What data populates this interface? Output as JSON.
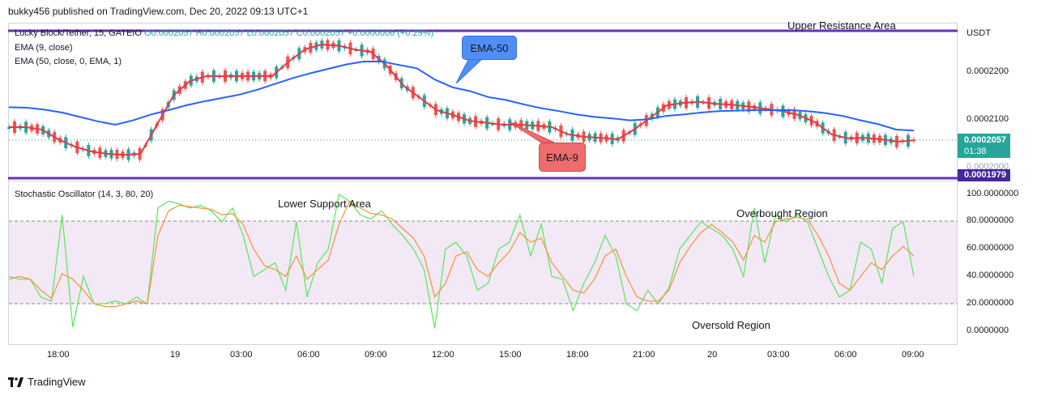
{
  "publisher": "bukky456 published on TradingView.com, Dec 20, 2022 09:13 UTC+1",
  "legend": {
    "symbol": "Lucky Block/Tether, 15, GATEIO",
    "ohlc": "O0.0002057 H0.0002057 L0.0002057 C0.0002057 +0.0000006 (+0.29%)",
    "ema9": "EMA (9, close)",
    "ema50": "EMA (50, close, 0, EMA, 1)",
    "stoch": "Stochastic Oscillator (14, 3, 80, 20)"
  },
  "annotations": {
    "upper_resistance": "Upper Resistance Area",
    "lower_support": "Lower Support Area",
    "overbought": "Overbought Region",
    "oversold": "Oversold Region",
    "ema50_callout": "EMA-50",
    "ema9_callout": "EMA-9"
  },
  "price_axis": {
    "currency": "USDT",
    "ticks": [
      "0.0002200",
      "0.0002100",
      "0.0002000"
    ],
    "last_price": "0.0002057",
    "countdown": "01:38",
    "support_price": "0.0001979"
  },
  "stoch_axis": {
    "ticks": [
      "100.0000000",
      "80.0000000",
      "60.0000000",
      "40.0000000",
      "20.0000000",
      "0.0000000"
    ]
  },
  "time_axis": {
    "ticks": [
      "18:00",
      "19",
      "03:00",
      "06:00",
      "09:00",
      "12:00",
      "15:00",
      "18:00",
      "21:00",
      "20",
      "03:00",
      "06:00",
      "09:00"
    ]
  },
  "colors": {
    "up": "#26a69a",
    "down": "#ef5350",
    "ema9": "#e53945",
    "ema50": "#2962ff",
    "level_line": "#6a2fb3",
    "stoch_k": "#55e85a",
    "stoch_d": "#f4923a",
    "band_fill": "#f3e8f5",
    "ema50_callout_bg": "#4f8ff5",
    "ema9_callout_bg": "#ef6c6c"
  },
  "footer": {
    "brand": "TradingView"
  },
  "chart_data": [
    {
      "type": "line",
      "title": "Lucky Block/Tether, 15, GATEIO",
      "ylim": [
        0.0001975,
        0.000229
      ],
      "series": [
        {
          "name": "EMA (9, close)",
          "values": [
            0.0002085,
            0.0002085,
            0.000208,
            0.000206,
            0.0002045,
            0.0002035,
            0.000203,
            0.0002028,
            0.000203,
            0.000209,
            0.000215,
            0.000218,
            0.000219,
            0.000219,
            0.000219,
            0.000219,
            0.000219,
            0.000222,
            0.0002245,
            0.0002255,
            0.0002253,
            0.0002245,
            0.000224,
            0.000221,
            0.000217,
            0.0002145,
            0.000212,
            0.000211,
            0.0002098,
            0.0002094,
            0.000209,
            0.000209,
            0.0002088,
            0.0002085,
            0.000207,
            0.0002065,
            0.0002063,
            0.000206,
            0.000208,
            0.0002105,
            0.000213,
            0.0002135,
            0.0002137,
            0.0002133,
            0.0002131,
            0.0002127,
            0.0002123,
            0.0002118,
            0.000211,
            0.0002095,
            0.000207,
            0.0002062,
            0.0002063,
            0.000206,
            0.0002055,
            0.0002058
          ]
        },
        {
          "name": "EMA (50, close, 0, EMA, 1)",
          "values": [
            0.0002126,
            0.0002125,
            0.0002121,
            0.0002115,
            0.0002106,
            0.0002097,
            0.000209,
            0.0002099,
            0.0002111,
            0.000212,
            0.000213,
            0.0002138,
            0.0002145,
            0.0002152,
            0.0002162,
            0.0002174,
            0.0002186,
            0.0002196,
            0.0002205,
            0.0002214,
            0.000222,
            0.000222,
            0.0002213,
            0.0002206,
            0.0002183,
            0.0002167,
            0.0002159,
            0.0002147,
            0.0002141,
            0.0002132,
            0.0002124,
            0.0002118,
            0.0002111,
            0.0002106,
            0.0002103,
            0.0002099,
            0.0002101,
            0.0002108,
            0.0002111,
            0.0002115,
            0.0002118,
            0.0002119,
            0.000212,
            0.000212,
            0.000212,
            0.0002118,
            0.0002114,
            0.0002108,
            0.0002099,
            0.0002091,
            0.000208,
            0.0002078
          ]
        }
      ],
      "levels": [
        0.000229,
        0.0001979
      ]
    },
    {
      "type": "line",
      "title": "Stochastic Oscillator (14, 3, 80, 20)",
      "ylim": [
        0,
        100
      ],
      "bands": [
        20,
        80
      ],
      "series": [
        {
          "name": "%K",
          "values": [
            40,
            38,
            38,
            25,
            22,
            85,
            3,
            40,
            20,
            20,
            22,
            20,
            25,
            20,
            90,
            95,
            93,
            90,
            92,
            88,
            80,
            90,
            70,
            40,
            45,
            50,
            30,
            80,
            25,
            50,
            60,
            100,
            95,
            85,
            82,
            88,
            78,
            70,
            60,
            45,
            2,
            60,
            65,
            55,
            30,
            35,
            60,
            65,
            85,
            55,
            78,
            40,
            38,
            15,
            35,
            50,
            70,
            55,
            20,
            15,
            30,
            20,
            32,
            60,
            70,
            80,
            75,
            70,
            60,
            40,
            90,
            50,
            85,
            80,
            85,
            80,
            60,
            40,
            25,
            30,
            65,
            60,
            35,
            75,
            80,
            40
          ]
        },
        {
          "name": "%D",
          "values": [
            38,
            40,
            38,
            30,
            24,
            42,
            38,
            30,
            20,
            18,
            18,
            20,
            22,
            20,
            70,
            88,
            92,
            91,
            90,
            89,
            85,
            86,
            78,
            60,
            48,
            45,
            40,
            55,
            38,
            45,
            52,
            78,
            95,
            90,
            86,
            85,
            82,
            75,
            68,
            55,
            25,
            35,
            55,
            58,
            45,
            40,
            50,
            58,
            72,
            65,
            68,
            50,
            40,
            30,
            28,
            38,
            55,
            60,
            40,
            25,
            22,
            22,
            30,
            50,
            62,
            72,
            78,
            72,
            65,
            52,
            70,
            65,
            80,
            82,
            83,
            82,
            70,
            55,
            35,
            30,
            40,
            50,
            45,
            55,
            62,
            55
          ]
        }
      ]
    }
  ]
}
